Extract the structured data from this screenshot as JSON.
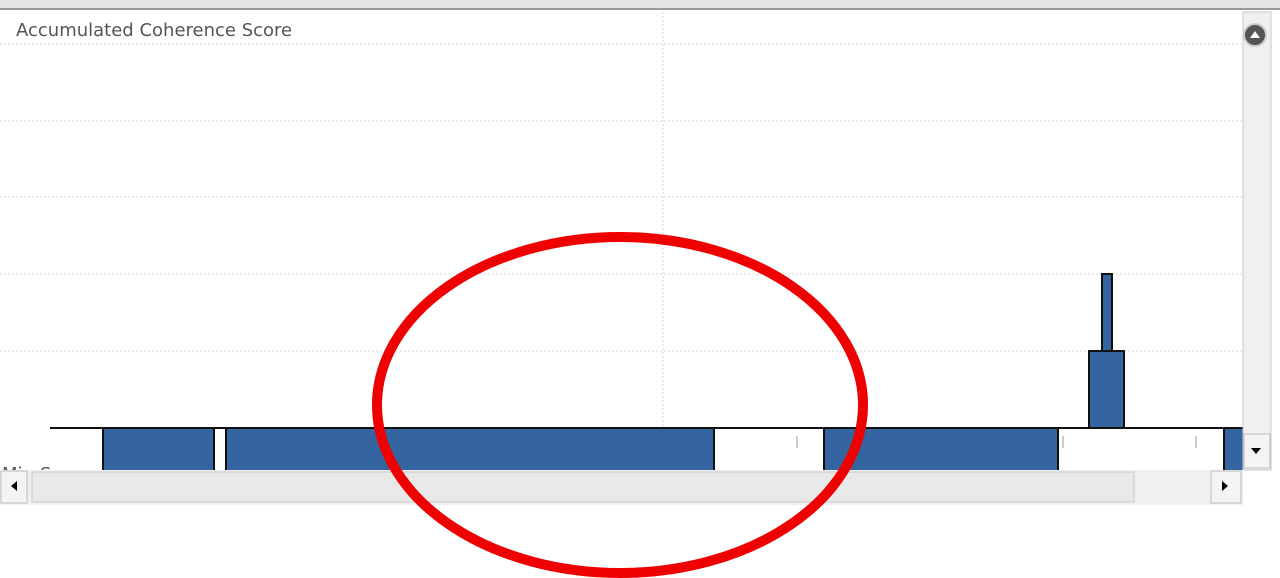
{
  "panel": {
    "title": "Accumulated Coherence Score",
    "axis_label": "Min:Sec"
  }
}
